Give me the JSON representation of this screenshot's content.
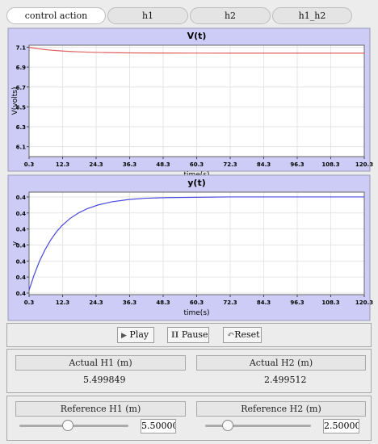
{
  "ui": {
    "tabs": [
      "control action",
      "h1",
      "h2",
      "h1_h2"
    ],
    "buttons": [
      "Play",
      "Pause",
      "Reset"
    ],
    "actual": [
      {
        "label": "Actual H1 (m)",
        "value": "5.499849"
      },
      {
        "label": "Actual H2 (m)",
        "value": "2.499512"
      }
    ],
    "reference": [
      {
        "label": "Reference H1 (m)",
        "value": "5.500000"
      },
      {
        "label": "Reference H2 (m)",
        "value": "2.500000"
      }
    ]
  },
  "chart_data": [
    {
      "type": "line",
      "title": "V(t)",
      "xlabel": "time(s)",
      "ylabel": "V(volts)",
      "x": [
        0.3,
        2,
        4,
        6,
        8,
        10,
        12,
        15,
        18,
        21,
        25,
        30,
        36,
        42,
        50,
        60,
        72,
        84,
        96,
        108,
        120.3
      ],
      "series": [
        {
          "color": "#e06060",
          "values": [
            7.0985,
            7.0908,
            7.083,
            7.0764,
            7.0708,
            7.0661,
            7.0621,
            7.0572,
            7.0534,
            7.0504,
            7.0475,
            7.0449,
            7.043,
            7.0418,
            7.0409,
            7.0404,
            7.0401,
            7.04,
            7.04,
            7.04,
            7.04
          ]
        }
      ],
      "xlim": [
        0.3,
        120.3
      ],
      "ylim": [
        6.0,
        7.12
      ],
      "xticks": [
        0.3,
        12.3,
        24.3,
        36.3,
        48.3,
        60.3,
        72.3,
        84.3,
        96.3,
        108.3,
        120.3
      ],
      "yticks": [
        6.1,
        6.3,
        6.5,
        6.7,
        6.9,
        7.1
      ],
      "grid": true
    },
    {
      "type": "line",
      "title": "y(t)",
      "xlabel": "time(s)",
      "ylabel": "y",
      "x": [
        0.3,
        2,
        4,
        6,
        8,
        10,
        12,
        15,
        18,
        21,
        25,
        30,
        36,
        42,
        50,
        60,
        72,
        84,
        96,
        108,
        120.3
      ],
      "series": [
        {
          "color": "#4848e0",
          "values": [
            0.3709,
            0.3754,
            0.3799,
            0.3835,
            0.3865,
            0.389,
            0.391,
            0.3933,
            0.395,
            0.3963,
            0.3975,
            0.3985,
            0.3992,
            0.3996,
            0.3998,
            0.3999,
            0.4,
            0.4,
            0.4,
            0.4,
            0.4
          ]
        }
      ],
      "xlim": [
        0.3,
        120.3
      ],
      "ylim": [
        0.3695,
        0.4015
      ],
      "xticks": [
        0.3,
        12.3,
        24.3,
        36.3,
        48.3,
        60.3,
        72.3,
        84.3,
        96.3,
        108.3,
        120.3
      ],
      "yticks": [
        {
          "value": 0.37,
          "label": "0.4"
        },
        {
          "value": 0.375,
          "label": "0.4"
        },
        {
          "value": 0.38,
          "label": "0.4"
        },
        {
          "value": 0.385,
          "label": "0.4"
        },
        {
          "value": 0.39,
          "label": "0.4"
        },
        {
          "value": 0.395,
          "label": "0.4"
        },
        {
          "value": 0.4,
          "label": "0.4"
        }
      ],
      "grid": true
    }
  ]
}
